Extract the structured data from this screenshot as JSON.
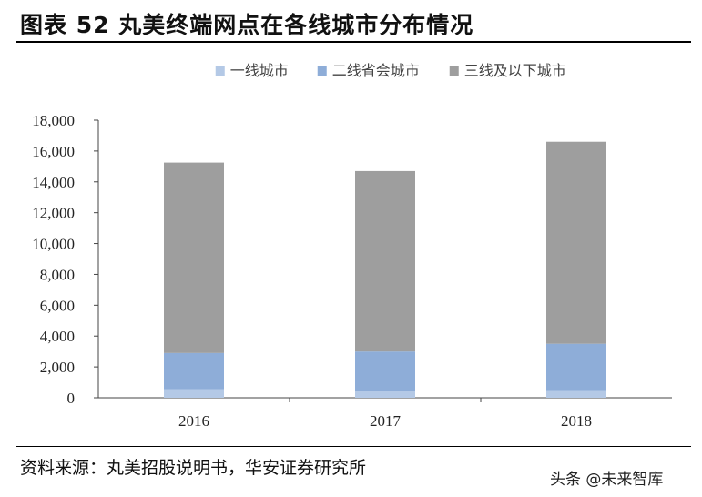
{
  "header": {
    "title": "图表 52  丸美终端网点在各线城市分布情况"
  },
  "footer": {
    "source": "资料来源：丸美招股说明书，华安证券研究所"
  },
  "watermark": {
    "text": "头条 @未来智库"
  },
  "chart_data": {
    "type": "bar",
    "stacked": true,
    "categories": [
      "2016",
      "2017",
      "2018"
    ],
    "series": [
      {
        "name": "一线城市",
        "values": [
          550,
          450,
          500
        ],
        "color": "#b4c9e6"
      },
      {
        "name": "二线省会城市",
        "values": [
          2350,
          2550,
          3000
        ],
        "color": "#8eadd8"
      },
      {
        "name": "三线及以下城市",
        "values": [
          12350,
          11700,
          13100
        ],
        "color": "#9e9e9e"
      }
    ],
    "ylim": [
      0,
      18000
    ],
    "yticks": [
      0,
      2000,
      4000,
      6000,
      8000,
      10000,
      12000,
      14000,
      16000,
      18000
    ],
    "ytick_labels": [
      "0",
      "2,000",
      "4,000",
      "6,000",
      "8,000",
      "10,000",
      "12,000",
      "14,000",
      "16,000",
      "18,000"
    ],
    "legend_position": "top",
    "grid": false
  }
}
